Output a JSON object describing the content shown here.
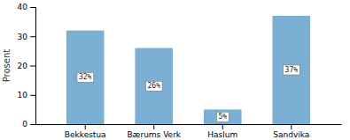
{
  "chart_data": {
    "type": "bar",
    "categories": [
      "Bekkestua",
      "Bærums Verk",
      "Haslum",
      "Sandvika"
    ],
    "values": [
      32,
      26,
      5,
      37
    ],
    "value_labels": [
      "32%",
      "26%",
      "5%",
      "37%"
    ],
    "data_labels": true,
    "color": "#7BAFD4",
    "ylabel": "Prosent",
    "ylim": [
      0,
      40
    ],
    "yticks": [
      0,
      10,
      20,
      30,
      40
    ],
    "grid": false
  }
}
